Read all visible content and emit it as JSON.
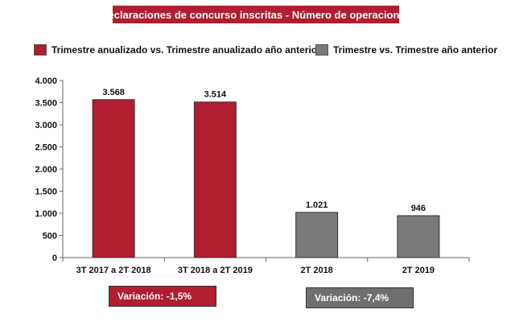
{
  "chart_data": {
    "type": "bar",
    "title": "Declaraciones de concurso inscritas - Número de operaciones",
    "categories": [
      "3T 2017 a 2T 2018",
      "3T 2018 a 2T 2019",
      "2T 2018",
      "2T 2019"
    ],
    "values": [
      3568,
      3514,
      1021,
      946
    ],
    "value_labels": [
      "3.568",
      "3.514",
      "1.021",
      "946"
    ],
    "series": [
      {
        "name": "Trimestre anualizado vs. Trimestre anualizado año anterior",
        "color": "#b01e2f",
        "category_indices": [
          0,
          1
        ]
      },
      {
        "name": "Trimestre vs. Trimestre año anterior",
        "color": "#7a7a7a",
        "category_indices": [
          2,
          3
        ]
      }
    ],
    "ylim": [
      0,
      4000
    ],
    "yticks": [
      0,
      500,
      1000,
      1500,
      2000,
      2500,
      3000,
      3500,
      4000
    ],
    "ytick_labels": [
      "0",
      "500",
      "1.000",
      "1.500",
      "2.000",
      "2.500",
      "3.000",
      "3.500",
      "4.000"
    ],
    "grid": false,
    "legend": "top"
  },
  "annotations": {
    "variation_red": "Variación:  -1,5%",
    "variation_gray": "Variación: -7,4%"
  }
}
